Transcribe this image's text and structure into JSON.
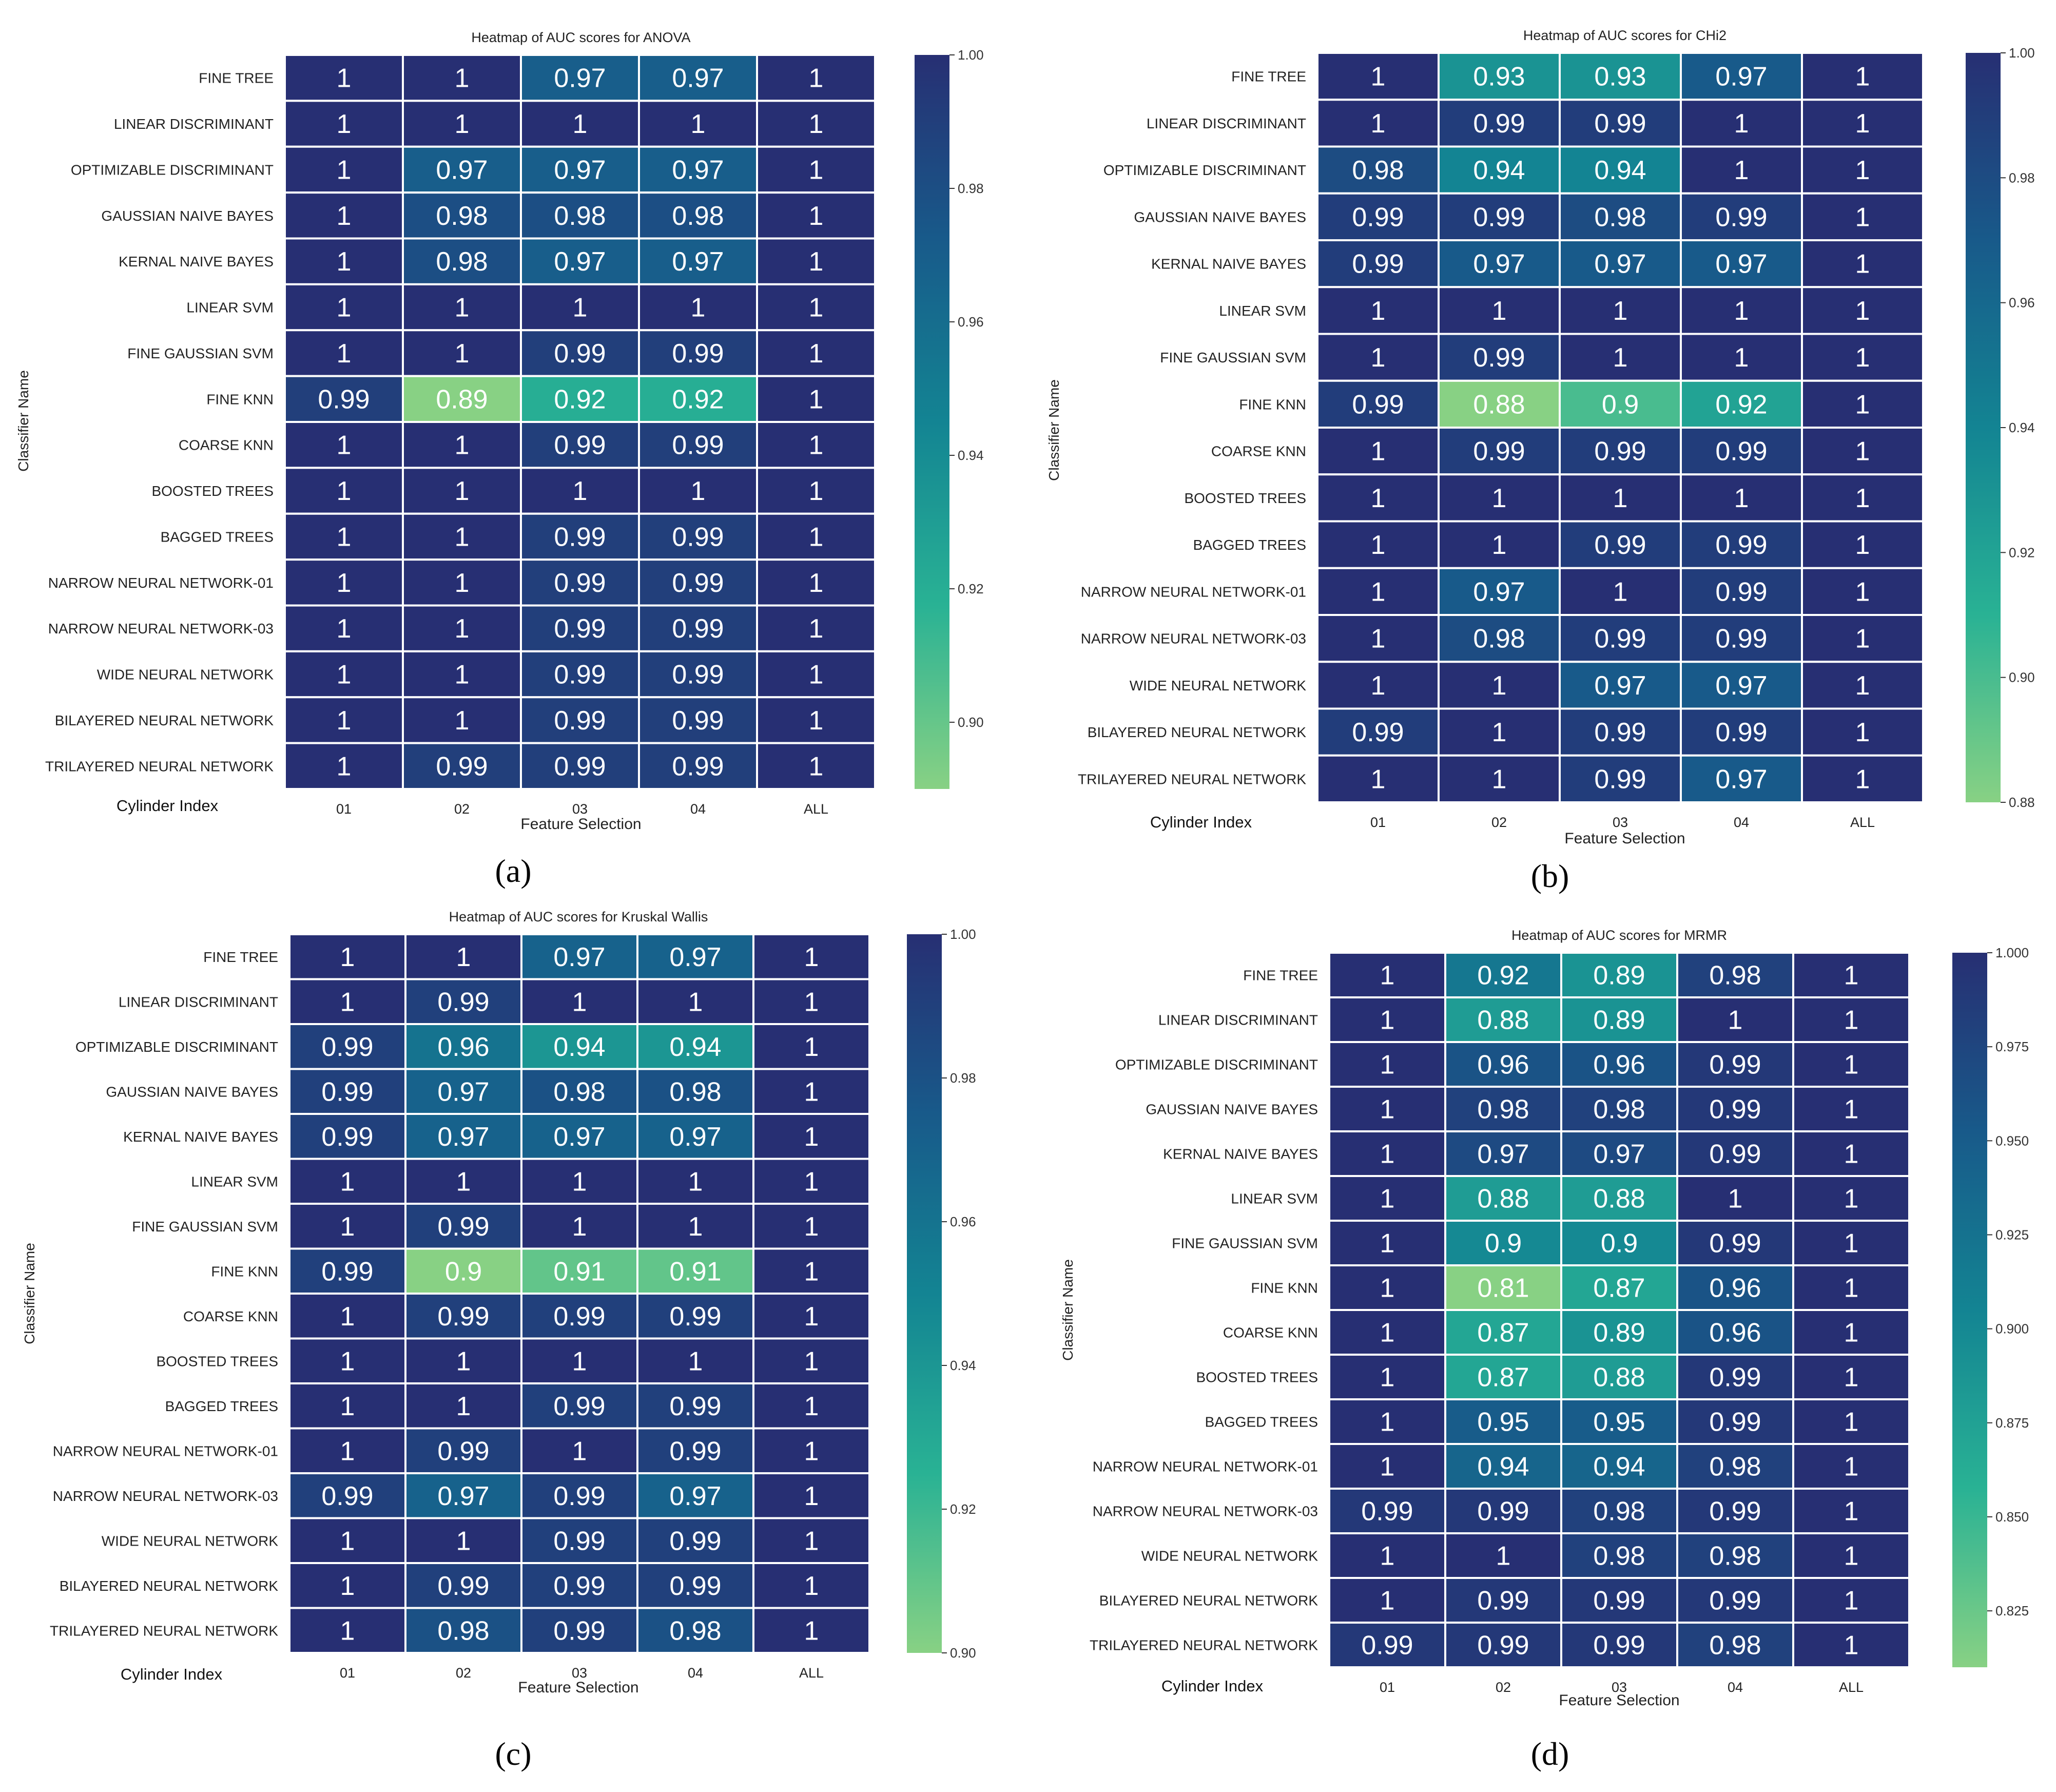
{
  "figure": {
    "panels": [
      {
        "id": "a",
        "label": "(a)"
      },
      {
        "id": "b",
        "label": "(b)"
      },
      {
        "id": "c",
        "label": "(c)"
      },
      {
        "id": "d",
        "label": "(d)"
      }
    ]
  },
  "chart_data": [
    {
      "type": "heatmap",
      "title": "Heatmap of AUC scores for ANOVA",
      "xlabel": "Feature Selection",
      "ylabel": "Classifier Name",
      "corner_label": "Cylinder Index",
      "categories": [
        "01",
        "02",
        "03",
        "04",
        "ALL"
      ],
      "rows": [
        "FINE TREE",
        "LINEAR DISCRIMINANT",
        "OPTIMIZABLE DISCRIMINANT",
        "GAUSSIAN NAIVE BAYES",
        "KERNAL NAIVE BAYES",
        "LINEAR SVM",
        "FINE GAUSSIAN SVM",
        "FINE KNN",
        "COARSE KNN",
        "BOOSTED TREES",
        "BAGGED TREES",
        "NARROW NEURAL NETWORK-01",
        "NARROW NEURAL NETWORK-03",
        "WIDE NEURAL NETWORK",
        "BILAYERED NEURAL NETWORK",
        "TRILAYERED NEURAL NETWORK"
      ],
      "values": [
        [
          1,
          1,
          0.97,
          0.97,
          1
        ],
        [
          1,
          1,
          1,
          1,
          1
        ],
        [
          1,
          0.97,
          0.97,
          0.97,
          1
        ],
        [
          1,
          0.98,
          0.98,
          0.98,
          1
        ],
        [
          1,
          0.98,
          0.97,
          0.97,
          1
        ],
        [
          1,
          1,
          1,
          1,
          1
        ],
        [
          1,
          1,
          0.99,
          0.99,
          1
        ],
        [
          0.99,
          0.89,
          0.92,
          0.92,
          1
        ],
        [
          1,
          1,
          0.99,
          0.99,
          1
        ],
        [
          1,
          1,
          1,
          1,
          1
        ],
        [
          1,
          1,
          0.99,
          0.99,
          1
        ],
        [
          1,
          1,
          0.99,
          0.99,
          1
        ],
        [
          1,
          1,
          0.99,
          0.99,
          1
        ],
        [
          1,
          1,
          0.99,
          0.99,
          1
        ],
        [
          1,
          1,
          0.99,
          0.99,
          1
        ],
        [
          1,
          0.99,
          0.99,
          0.99,
          1
        ]
      ],
      "colorbar": {
        "min": 0.89,
        "max": 1.0,
        "ticks": [
          "1.00",
          "0.98",
          "0.96",
          "0.94",
          "0.92",
          "0.90"
        ]
      }
    },
    {
      "type": "heatmap",
      "title": "Heatmap of AUC scores for CHi2",
      "xlabel": "Feature Selection",
      "ylabel": "Classifier Name",
      "corner_label": "Cylinder Index",
      "categories": [
        "01",
        "02",
        "03",
        "04",
        "ALL"
      ],
      "rows": [
        "FINE TREE",
        "LINEAR DISCRIMINANT",
        "OPTIMIZABLE DISCRIMINANT",
        "GAUSSIAN NAIVE BAYES",
        "KERNAL NAIVE BAYES",
        "LINEAR SVM",
        "FINE GAUSSIAN SVM",
        "FINE KNN",
        "COARSE KNN",
        "BOOSTED TREES",
        "BAGGED TREES",
        "NARROW NEURAL NETWORK-01",
        "NARROW NEURAL NETWORK-03",
        "WIDE NEURAL NETWORK",
        "BILAYERED NEURAL NETWORK",
        "TRILAYERED NEURAL NETWORK"
      ],
      "values": [
        [
          1,
          0.93,
          0.93,
          0.97,
          1
        ],
        [
          1,
          0.99,
          0.99,
          1,
          1
        ],
        [
          0.98,
          0.94,
          0.94,
          1,
          1
        ],
        [
          0.99,
          0.99,
          0.98,
          0.99,
          1
        ],
        [
          0.99,
          0.97,
          0.97,
          0.97,
          1
        ],
        [
          1,
          1,
          1,
          1,
          1
        ],
        [
          1,
          0.99,
          1,
          1,
          1
        ],
        [
          0.99,
          0.88,
          0.9,
          0.92,
          1
        ],
        [
          1,
          0.99,
          0.99,
          0.99,
          1
        ],
        [
          1,
          1,
          1,
          1,
          1
        ],
        [
          1,
          1,
          0.99,
          0.99,
          1
        ],
        [
          1,
          0.97,
          1,
          0.99,
          1
        ],
        [
          1,
          0.98,
          0.99,
          0.99,
          1
        ],
        [
          1,
          1,
          0.97,
          0.97,
          1
        ],
        [
          0.99,
          1,
          0.99,
          0.99,
          1
        ],
        [
          1,
          1,
          0.99,
          0.97,
          1
        ]
      ],
      "colorbar": {
        "min": 0.88,
        "max": 1.0,
        "ticks": [
          "1.00",
          "0.98",
          "0.96",
          "0.94",
          "0.92",
          "0.90",
          "0.88"
        ]
      }
    },
    {
      "type": "heatmap",
      "title": "Heatmap of AUC scores for Kruskal Wallis",
      "xlabel": "Feature Selection",
      "ylabel": "Classifier Name",
      "corner_label": "Cylinder Index",
      "categories": [
        "01",
        "02",
        "03",
        "04",
        "ALL"
      ],
      "rows": [
        "FINE TREE",
        "LINEAR DISCRIMINANT",
        "OPTIMIZABLE DISCRIMINANT",
        "GAUSSIAN NAIVE BAYES",
        "KERNAL NAIVE BAYES",
        "LINEAR SVM",
        "FINE GAUSSIAN SVM",
        "FINE KNN",
        "COARSE KNN",
        "BOOSTED TREES",
        "BAGGED TREES",
        "NARROW NEURAL NETWORK-01",
        "NARROW NEURAL NETWORK-03",
        "WIDE NEURAL NETWORK",
        "BILAYERED NEURAL NETWORK",
        "TRILAYERED NEURAL NETWORK"
      ],
      "values": [
        [
          1,
          1,
          0.97,
          0.97,
          1
        ],
        [
          1,
          0.99,
          1,
          1,
          1
        ],
        [
          0.99,
          0.96,
          0.94,
          0.94,
          1
        ],
        [
          0.99,
          0.97,
          0.98,
          0.98,
          1
        ],
        [
          0.99,
          0.97,
          0.97,
          0.97,
          1
        ],
        [
          1,
          1,
          1,
          1,
          1
        ],
        [
          1,
          0.99,
          1,
          1,
          1
        ],
        [
          0.99,
          0.9,
          0.91,
          0.91,
          1
        ],
        [
          1,
          0.99,
          0.99,
          0.99,
          1
        ],
        [
          1,
          1,
          1,
          1,
          1
        ],
        [
          1,
          1,
          0.99,
          0.99,
          1
        ],
        [
          1,
          0.99,
          1,
          0.99,
          1
        ],
        [
          0.99,
          0.97,
          0.99,
          0.97,
          1
        ],
        [
          1,
          1,
          0.99,
          0.99,
          1
        ],
        [
          1,
          0.99,
          0.99,
          0.99,
          1
        ],
        [
          1,
          0.98,
          0.99,
          0.98,
          1
        ]
      ],
      "colorbar": {
        "min": 0.9,
        "max": 1.0,
        "ticks": [
          "1.00",
          "0.98",
          "0.96",
          "0.94",
          "0.92",
          "0.90"
        ]
      }
    },
    {
      "type": "heatmap",
      "title": "Heatmap of AUC scores for MRMR",
      "xlabel": "Feature Selection",
      "ylabel": "Classifier Name",
      "corner_label": "Cylinder Index",
      "categories": [
        "01",
        "02",
        "03",
        "04",
        "ALL"
      ],
      "rows": [
        "FINE TREE",
        "LINEAR DISCRIMINANT",
        "OPTIMIZABLE DISCRIMINANT",
        "GAUSSIAN NAIVE BAYES",
        "KERNAL NAIVE BAYES",
        "LINEAR SVM",
        "FINE GAUSSIAN SVM",
        "FINE KNN",
        "COARSE KNN",
        "BOOSTED TREES",
        "BAGGED TREES",
        "NARROW NEURAL NETWORK-01",
        "NARROW NEURAL NETWORK-03",
        "WIDE NEURAL NETWORK",
        "BILAYERED NEURAL NETWORK",
        "TRILAYERED NEURAL NETWORK"
      ],
      "values": [
        [
          1,
          0.92,
          0.89,
          0.98,
          1
        ],
        [
          1,
          0.88,
          0.89,
          1,
          1
        ],
        [
          1,
          0.96,
          0.96,
          0.99,
          1
        ],
        [
          1,
          0.98,
          0.98,
          0.99,
          1
        ],
        [
          1,
          0.97,
          0.97,
          0.99,
          1
        ],
        [
          1,
          0.88,
          0.88,
          1,
          1
        ],
        [
          1,
          0.9,
          0.9,
          0.99,
          1
        ],
        [
          1,
          0.81,
          0.87,
          0.96,
          1
        ],
        [
          1,
          0.87,
          0.89,
          0.96,
          1
        ],
        [
          1,
          0.87,
          0.88,
          0.99,
          1
        ],
        [
          1,
          0.95,
          0.95,
          0.99,
          1
        ],
        [
          1,
          0.94,
          0.94,
          0.98,
          1
        ],
        [
          0.99,
          0.99,
          0.98,
          0.99,
          1
        ],
        [
          1,
          1,
          0.98,
          0.98,
          1
        ],
        [
          1,
          0.99,
          0.99,
          0.99,
          1
        ],
        [
          0.99,
          0.99,
          0.99,
          0.98,
          1
        ]
      ],
      "colorbar": {
        "min": 0.81,
        "max": 1.0,
        "ticks": [
          "1.000",
          "0.975",
          "0.950",
          "0.925",
          "0.900",
          "0.875",
          "0.850",
          "0.825"
        ]
      }
    }
  ]
}
